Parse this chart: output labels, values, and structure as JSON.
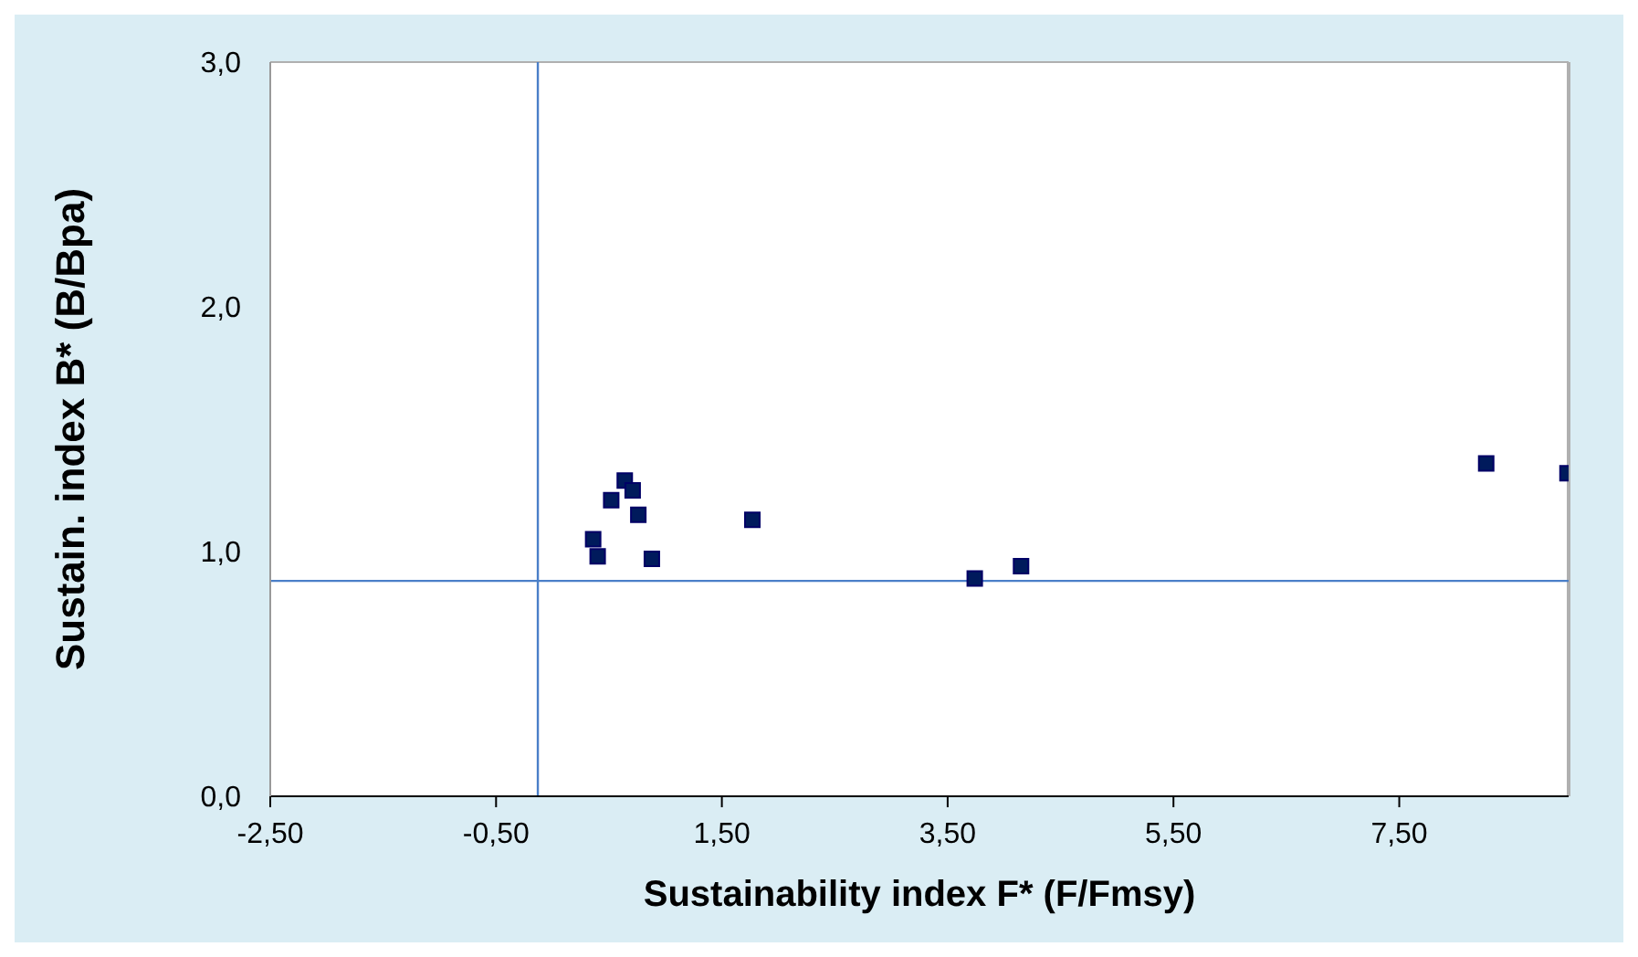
{
  "chart_data": {
    "type": "scatter",
    "xlabel": "Sustainability index F* (F/Fmsy)",
    "ylabel": "Sustain. index B* (B/Bpa)",
    "x": [
      0.64,
      0.71,
      0.52,
      0.76,
      0.36,
      0.4,
      0.88,
      1.77,
      3.74,
      4.15,
      8.27,
      8.99
    ],
    "series": [
      {
        "color": "#001a5c",
        "values": [
          1.29,
          1.25,
          1.21,
          1.15,
          1.05,
          0.98,
          0.97,
          1.13,
          0.89,
          0.94,
          1.36,
          1.32
        ]
      }
    ],
    "xlim": [
      -2.5,
      9.0
    ],
    "xticks": [
      {
        "value": -2.5,
        "label": "-2,50"
      },
      {
        "value": -0.5,
        "label": "-0,50"
      },
      {
        "value": 1.5,
        "label": "1,50"
      },
      {
        "value": 3.5,
        "label": "3,50"
      },
      {
        "value": 5.5,
        "label": "5,50"
      },
      {
        "value": 7.5,
        "label": "7,50"
      }
    ],
    "ylim": [
      0,
      3
    ],
    "yticks": [
      {
        "value": 0,
        "label": "0,0"
      },
      {
        "value": 1,
        "label": "1,0"
      },
      {
        "value": 2,
        "label": "2,0"
      },
      {
        "value": 3,
        "label": "3,0"
      }
    ],
    "ref_lines": [
      {
        "axis": "x",
        "value": -0.13,
        "color": "#4a7fc8"
      },
      {
        "axis": "y",
        "value": 0.88,
        "color": "#4a7fc8"
      }
    ],
    "marker": "square"
  }
}
